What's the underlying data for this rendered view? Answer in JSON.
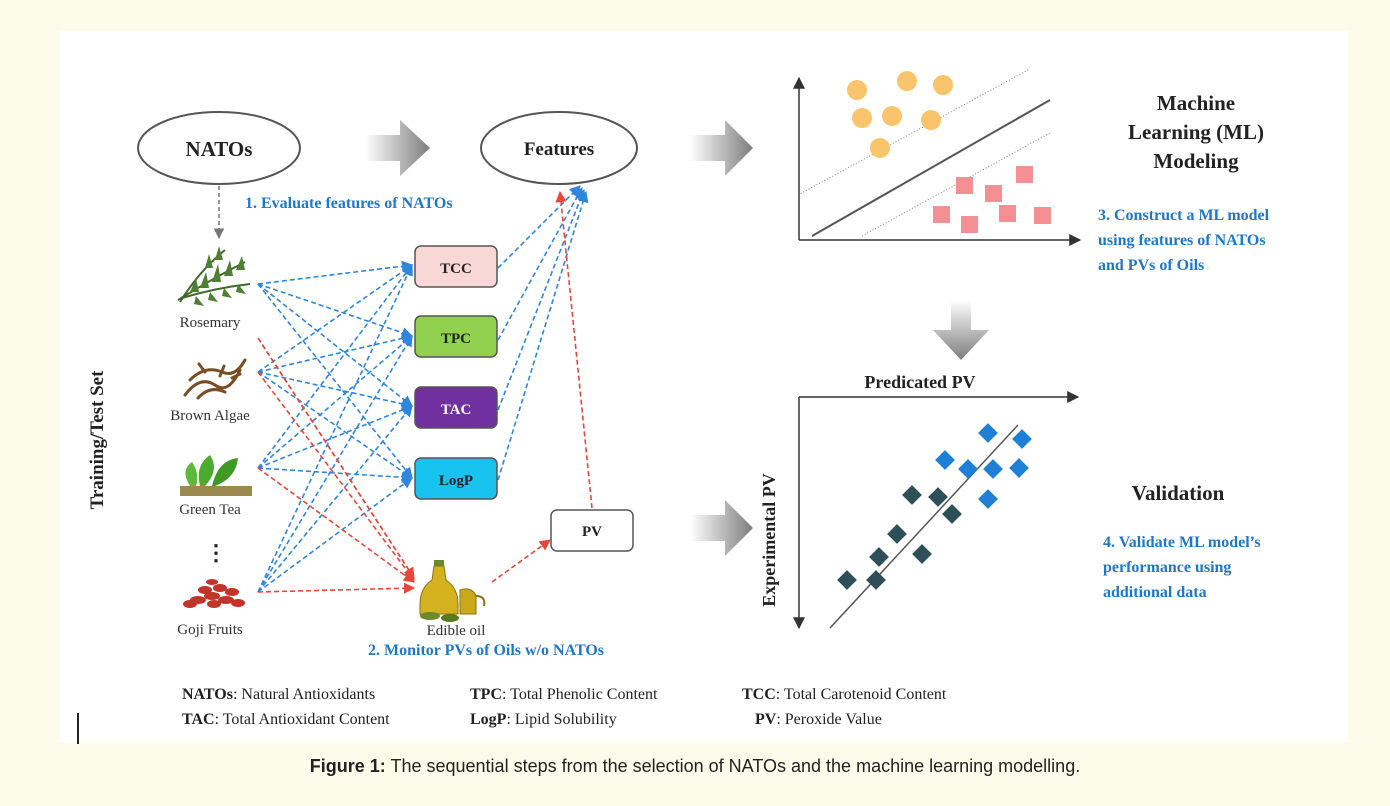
{
  "nodes": {
    "natos": "NATOs",
    "features": "Features",
    "pv": "PV"
  },
  "features": [
    {
      "label": "TCC",
      "color": "#f8d7d7"
    },
    {
      "label": "TPC",
      "color": "#92d050"
    },
    {
      "label": "TAC",
      "color": "#7030a0"
    },
    {
      "label": "LogP",
      "color": "#19c3f0"
    }
  ],
  "sources": [
    {
      "label": "Rosemary",
      "icon": "rosemary-icon"
    },
    {
      "label": "Brown Algae",
      "icon": "brown-algae-icon"
    },
    {
      "label": "Green Tea",
      "icon": "green-tea-icon"
    },
    {
      "label": "Goji Fruits",
      "icon": "goji-fruits-icon"
    }
  ],
  "ellipsis": "⋮",
  "oil_label": "Edible oil",
  "side_label": "Training/Test Set",
  "steps": {
    "step1": "1. Evaluate features of NATOs",
    "step2": "2. Monitor PVs of Oils w/o NATOs",
    "step3": [
      "3. Construct a ML model",
      "using features of NATOs",
      "and PVs of Oils"
    ],
    "step4": [
      "4. Validate ML model’s",
      "performance using",
      "additional data"
    ]
  },
  "headings": {
    "ml": [
      "Machine",
      "Learning (ML)",
      "Modeling"
    ],
    "validation": "Validation"
  },
  "axes": {
    "predicted": "Predicated PV",
    "experimental": "Experimental PV"
  },
  "legend": [
    {
      "abbr": "NATOs",
      "desc": ": Natural Antioxidants"
    },
    {
      "abbr": "TPC",
      "desc": ": Total Phenolic Content"
    },
    {
      "abbr": "TCC",
      "desc": ": Total Carotenoid Content"
    },
    {
      "abbr": "TAC",
      "desc": ": Total Antioxidant Content"
    },
    {
      "abbr": "LogP",
      "desc": ": Lipid Solubility"
    },
    {
      "abbr": "PV",
      "desc": ": Peroxide Value"
    }
  ],
  "caption": {
    "label": "Figure 1:",
    "text": " The sequential steps from the selection of NATOs and the machine learning modelling."
  },
  "colors": {
    "step_text": "#1f77c8",
    "blue_arrow": "#2e86de",
    "red_arrow": "#e8463a",
    "orange_dot": "#f9c46b",
    "pink_square": "#f48f93",
    "blue_diamond": "#1e7fd6",
    "dark_diamond": "#2f4f58",
    "frame_bg": "#fdfbe9"
  }
}
